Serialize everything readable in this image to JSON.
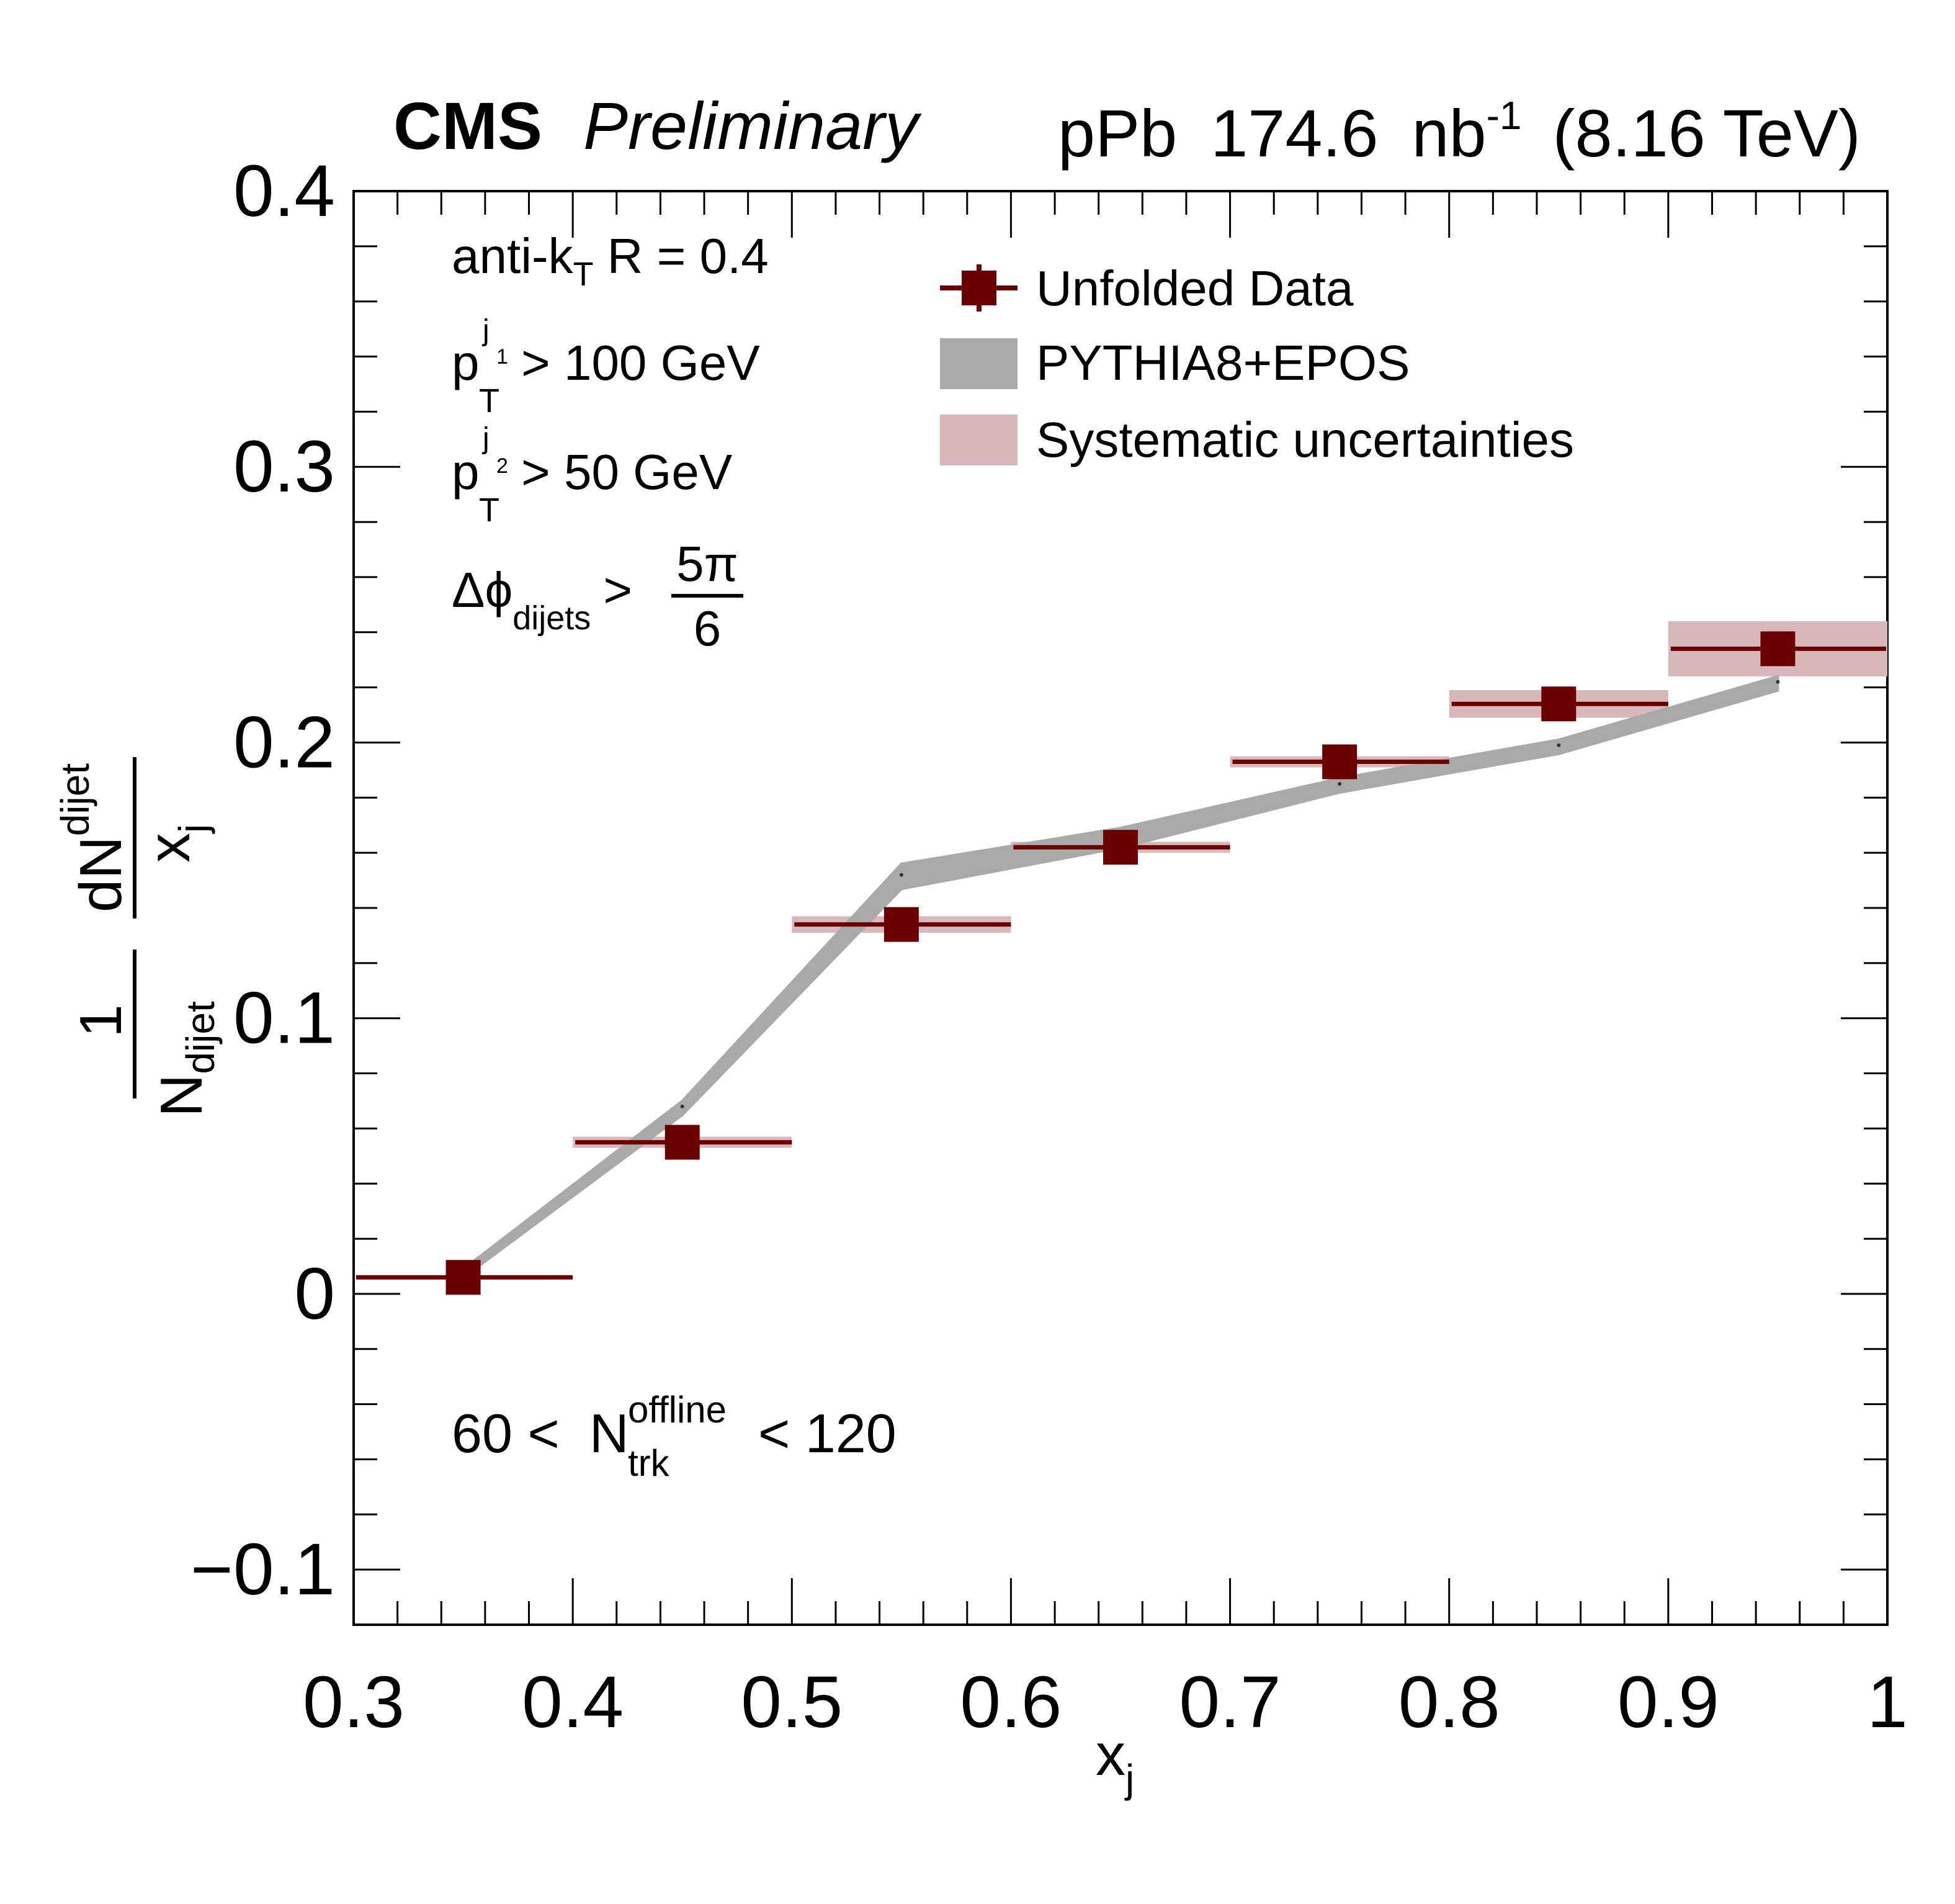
{
  "header": {
    "experiment": "CMS",
    "status": "Preliminary",
    "system": "pPb",
    "lumi_value": "174.6",
    "lumi_unit_base": "nb",
    "lumi_unit_exp": "-1",
    "energy": "(8.16 TeV)"
  },
  "annotations": {
    "jet_algo_base": "anti-k",
    "jet_algo_sub": "T",
    "jet_radius": "R = 0.4",
    "pt_symbol": "p",
    "pt_sub": "T",
    "lead_sup": "j",
    "lead_sup_sub": "1",
    "lead_cut": "> 100 GeV",
    "sublead_sup": "j",
    "sublead_sup_sub": "2",
    "sublead_cut": "> 50 GeV",
    "dphi_symbol": "Δϕ",
    "dphi_sub": "dijets",
    "dphi_op": ">",
    "dphi_num": "5π",
    "dphi_den": "6",
    "mult_low": "60 <",
    "mult_symbol": "N",
    "mult_sup": "offline",
    "mult_sub": "trk",
    "mult_high": "< 120"
  },
  "axes": {
    "x_label_base": "x",
    "x_label_sub": "j",
    "y_one": "1",
    "y_N": "N",
    "y_N_sub": "dijet",
    "y_dN": "dN",
    "y_dN_sub": "dijet",
    "y_x": "x",
    "y_x_sub": "j",
    "x_ticks": [
      "0.3",
      "0.4",
      "0.5",
      "0.6",
      "0.7",
      "0.8",
      "0.9",
      "1"
    ],
    "y_ticks": [
      "−0.1",
      "0",
      "0.1",
      "0.2",
      "0.3",
      "0.4"
    ]
  },
  "legend": {
    "data_label": "Unfolded Data",
    "mc_label": "PYTHIA8+EPOS",
    "syst_label": "Systematic uncertainties",
    "position": "top-right"
  },
  "colors": {
    "data": "#6b0000",
    "mc": "#a9a9a9",
    "syst": "#d9b8bc",
    "axis": "#000000"
  },
  "chart_data": {
    "type": "scatter",
    "xlim": [
      0.3,
      1.0
    ],
    "ylim": [
      -0.12,
      0.4
    ],
    "x_tick_values": [
      0.3,
      0.4,
      0.5,
      0.6,
      0.7,
      0.8,
      0.9,
      1.0
    ],
    "y_tick_values": [
      -0.1,
      0,
      0.1,
      0.2,
      0.3,
      0.4
    ],
    "grid": false,
    "bins": [
      {
        "xlo": 0.3,
        "xhi": 0.4,
        "x": 0.35,
        "y": 0.006,
        "syst": 0.0
      },
      {
        "xlo": 0.4,
        "xhi": 0.5,
        "x": 0.45,
        "y": 0.055,
        "syst": 0.002
      },
      {
        "xlo": 0.5,
        "xhi": 0.6,
        "x": 0.55,
        "y": 0.134,
        "syst": 0.003
      },
      {
        "xlo": 0.6,
        "xhi": 0.7,
        "x": 0.65,
        "y": 0.162,
        "syst": 0.002
      },
      {
        "xlo": 0.7,
        "xhi": 0.8,
        "x": 0.75,
        "y": 0.193,
        "syst": 0.002
      },
      {
        "xlo": 0.8,
        "xhi": 0.9,
        "x": 0.85,
        "y": 0.214,
        "syst": 0.005
      },
      {
        "xlo": 0.9,
        "xhi": 1.0,
        "x": 0.95,
        "y": 0.234,
        "syst": 0.01
      }
    ],
    "mc_series": [
      {
        "x": 0.35,
        "y": 0.008,
        "err": 0.001
      },
      {
        "x": 0.45,
        "y": 0.068,
        "err": 0.002
      },
      {
        "x": 0.55,
        "y": 0.152,
        "err": 0.004
      },
      {
        "x": 0.65,
        "y": 0.166,
        "err": 0.003
      },
      {
        "x": 0.75,
        "y": 0.185,
        "err": 0.002
      },
      {
        "x": 0.85,
        "y": 0.199,
        "err": 0.002
      },
      {
        "x": 0.95,
        "y": 0.222,
        "err": 0.002
      }
    ]
  }
}
